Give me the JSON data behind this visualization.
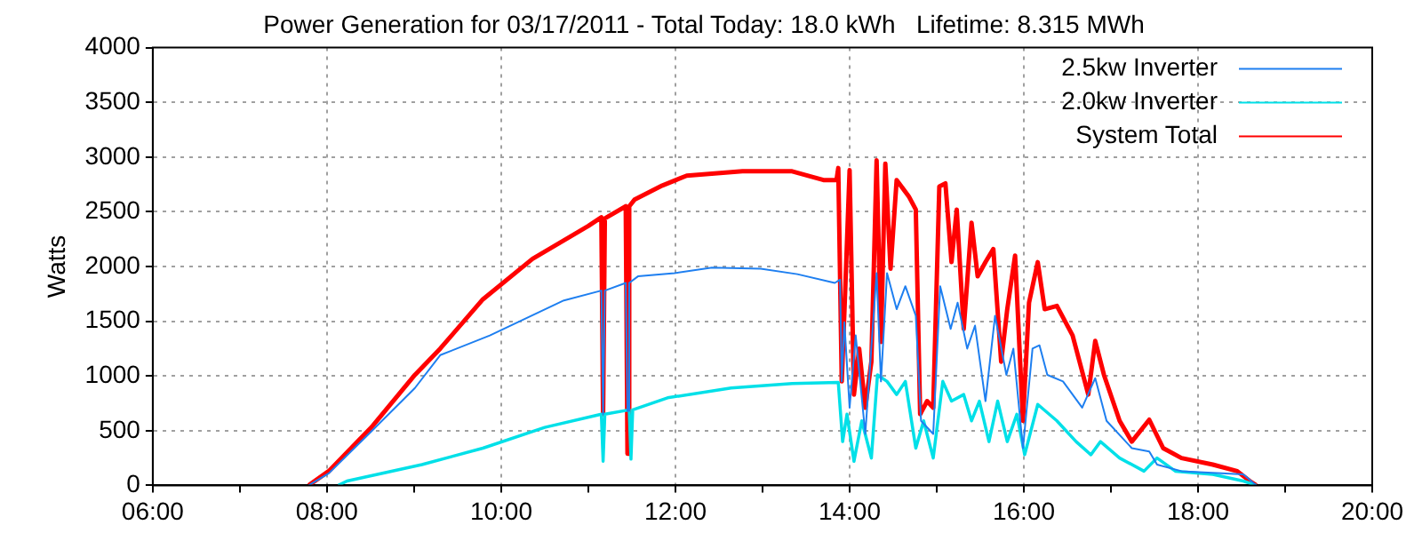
{
  "chart_data": {
    "type": "line",
    "title": "Power Generation for 03/17/2011 - Total Today: 18.0 kWh   Lifetime: 8.315 MWh",
    "ylabel": "Watts",
    "xlim": [
      6,
      20
    ],
    "xticks": [
      {
        "value": 6,
        "label": "06:00"
      },
      {
        "value": 7,
        "label": null
      },
      {
        "value": 8,
        "label": "08:00"
      },
      {
        "value": 9,
        "label": null
      },
      {
        "value": 10,
        "label": "10:00"
      },
      {
        "value": 11,
        "label": null
      },
      {
        "value": 12,
        "label": "12:00"
      },
      {
        "value": 13,
        "label": null
      },
      {
        "value": 14,
        "label": "14:00"
      },
      {
        "value": 15,
        "label": null
      },
      {
        "value": 16,
        "label": "16:00"
      },
      {
        "value": 17,
        "label": null
      },
      {
        "value": 18,
        "label": "18:00"
      },
      {
        "value": 19,
        "label": null
      },
      {
        "value": 20,
        "label": "20:00"
      }
    ],
    "ylim": [
      0,
      4000
    ],
    "yticks": [
      0,
      500,
      1000,
      1500,
      2000,
      2500,
      3000,
      3500,
      4000
    ],
    "grid": true,
    "legend": "top right",
    "marker": "none",
    "line_style": "solid",
    "series": [
      {
        "name": "2.5kw Inverter",
        "color": "#1e7ff0",
        "x": [
          7.79,
          8.02,
          8.48,
          9.01,
          9.3,
          9.87,
          10.72,
          11.15,
          11.17,
          11.19,
          11.43,
          11.45,
          11.47,
          11.57,
          11.99,
          12.42,
          12.98,
          13.4,
          13.83,
          13.89,
          13.91,
          13.94,
          14.0,
          14.07,
          14.18,
          14.31,
          14.36,
          14.43,
          14.54,
          14.64,
          14.76,
          14.82,
          14.96,
          15.04,
          15.16,
          15.24,
          15.35,
          15.44,
          15.56,
          15.67,
          15.8,
          15.88,
          15.99,
          16.1,
          16.18,
          16.27,
          16.45,
          16.67,
          16.82,
          16.95,
          17.24,
          17.44,
          17.53,
          17.81,
          18.52,
          18.67
        ],
        "values": [
          0,
          110,
          470,
          890,
          1190,
          1370,
          1690,
          1780,
          650,
          1780,
          1850,
          680,
          1850,
          1910,
          1940,
          1990,
          1980,
          1930,
          1850,
          1880,
          950,
          1490,
          710,
          1370,
          470,
          1940,
          950,
          1940,
          1610,
          1820,
          1550,
          590,
          470,
          1820,
          1430,
          1670,
          1250,
          1460,
          770,
          1550,
          1010,
          1250,
          340,
          1250,
          1280,
          1010,
          950,
          710,
          980,
          590,
          340,
          310,
          190,
          130,
          100,
          0
        ]
      },
      {
        "name": "2.0kw Inverter",
        "color": "#00e0e8",
        "x": [
          8.13,
          8.23,
          9.09,
          9.79,
          10.5,
          11.15,
          11.17,
          11.19,
          11.47,
          11.49,
          11.51,
          11.91,
          12.64,
          13.34,
          13.87,
          13.92,
          13.97,
          14.05,
          14.14,
          14.25,
          14.32,
          14.43,
          14.54,
          14.64,
          14.76,
          14.85,
          14.96,
          15.07,
          15.17,
          15.31,
          15.4,
          15.49,
          15.6,
          15.7,
          15.81,
          15.92,
          16.01,
          16.16,
          16.38,
          16.6,
          16.77,
          16.88,
          17.1,
          17.38,
          17.53,
          17.74,
          18.17,
          18.52,
          18.67
        ],
        "values": [
          0,
          40,
          190,
          340,
          530,
          650,
          220,
          650,
          690,
          240,
          690,
          800,
          890,
          930,
          940,
          400,
          650,
          220,
          590,
          250,
          1010,
          950,
          830,
          950,
          340,
          590,
          250,
          950,
          770,
          830,
          590,
          770,
          400,
          770,
          400,
          650,
          280,
          740,
          590,
          400,
          280,
          400,
          250,
          130,
          250,
          130,
          100,
          40,
          0
        ]
      },
      {
        "name": "System Total",
        "color": "#ff0000",
        "x": [
          7.79,
          8.02,
          8.51,
          9.01,
          9.3,
          9.79,
          10.36,
          11.0,
          11.15,
          11.17,
          11.19,
          11.43,
          11.45,
          11.47,
          11.53,
          11.85,
          12.13,
          12.77,
          13.34,
          13.7,
          13.85,
          13.87,
          13.91,
          13.95,
          14.0,
          14.05,
          14.11,
          14.18,
          14.25,
          14.31,
          14.36,
          14.41,
          14.47,
          14.54,
          14.68,
          14.76,
          14.81,
          14.89,
          14.96,
          15.03,
          15.1,
          15.17,
          15.23,
          15.31,
          15.4,
          15.47,
          15.56,
          15.65,
          15.74,
          15.81,
          15.9,
          15.99,
          16.06,
          16.16,
          16.24,
          16.38,
          16.56,
          16.74,
          16.82,
          16.92,
          17.1,
          17.24,
          17.44,
          17.6,
          17.81,
          18.17,
          18.45,
          18.61,
          18.67
        ],
        "values": [
          0,
          130,
          530,
          1010,
          1250,
          1700,
          2070,
          2370,
          2450,
          650,
          2440,
          2550,
          290,
          2550,
          2610,
          2740,
          2830,
          2870,
          2870,
          2790,
          2790,
          2900,
          950,
          1790,
          2880,
          830,
          1250,
          710,
          1130,
          2970,
          1310,
          2940,
          1980,
          2790,
          2640,
          2520,
          650,
          770,
          710,
          2730,
          2760,
          2040,
          2520,
          1430,
          2400,
          1910,
          2040,
          2160,
          1130,
          1610,
          2100,
          590,
          1670,
          2040,
          1610,
          1640,
          1370,
          830,
          1320,
          1010,
          590,
          400,
          600,
          340,
          250,
          190,
          130,
          30,
          0
        ]
      }
    ]
  }
}
